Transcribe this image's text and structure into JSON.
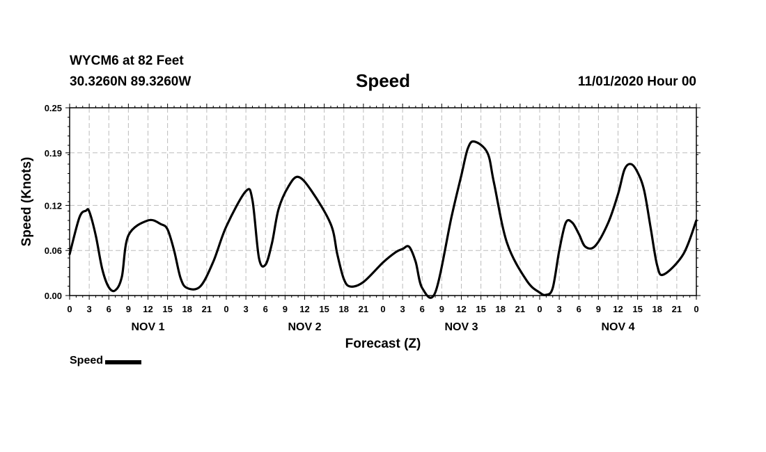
{
  "header": {
    "station": "WYCM6 at 82 Feet",
    "coords": "30.3260N 89.3260W",
    "title": "Speed",
    "datetime": "11/01/2020 Hour 00"
  },
  "legend": {
    "label": "Speed"
  },
  "colors": {
    "line": "#000000",
    "grid": "#bbbbbb"
  },
  "chart_data": {
    "type": "line",
    "title": "Speed",
    "xlabel": "Forecast (Z)",
    "ylabel": "Speed (Knots)",
    "xlim": [
      0,
      96
    ],
    "ylim": [
      0,
      0.25
    ],
    "y_ticks": [
      "0.00",
      "0.06",
      "0.12",
      "0.19",
      "0.25"
    ],
    "x_ticks": [
      "0",
      "3",
      "6",
      "9",
      "12",
      "15",
      "18",
      "21",
      "0",
      "3",
      "6",
      "9",
      "12",
      "15",
      "18",
      "21",
      "0",
      "3",
      "6",
      "9",
      "12",
      "15",
      "18",
      "21",
      "0",
      "3",
      "6",
      "9",
      "12",
      "15",
      "18",
      "21",
      "0"
    ],
    "day_labels": [
      "NOV 1",
      "NOV 2",
      "NOV 3",
      "NOV 4"
    ],
    "grid": true,
    "legend_position": "bottom-left",
    "series": [
      {
        "name": "Speed",
        "x": [
          0,
          1.5,
          2.5,
          3,
          4,
          5,
          6,
          7,
          8,
          9,
          12,
          14,
          15,
          16,
          17,
          18,
          20,
          22,
          24,
          27,
          28,
          29,
          30,
          31,
          32,
          33.5,
          35,
          37,
          40,
          41,
          42,
          43,
          45,
          48,
          50,
          51,
          52,
          53,
          54,
          56,
          58.5,
          60,
          61,
          62,
          64,
          65,
          67,
          70,
          72,
          73,
          74,
          75,
          76,
          77,
          78,
          79,
          80.5,
          82.5,
          84,
          85,
          86,
          87,
          88,
          89,
          90,
          91,
          94,
          96
        ],
        "y": [
          0.055,
          0.104,
          0.113,
          0.112,
          0.08,
          0.035,
          0.011,
          0.007,
          0.025,
          0.08,
          0.1,
          0.095,
          0.088,
          0.06,
          0.023,
          0.01,
          0.012,
          0.045,
          0.092,
          0.139,
          0.127,
          0.05,
          0.041,
          0.07,
          0.115,
          0.145,
          0.158,
          0.14,
          0.095,
          0.055,
          0.022,
          0.012,
          0.018,
          0.044,
          0.058,
          0.062,
          0.065,
          0.045,
          0.01,
          0.004,
          0.105,
          0.16,
          0.196,
          0.205,
          0.19,
          0.15,
          0.07,
          0.02,
          0.004,
          0.001,
          0.01,
          0.06,
          0.097,
          0.097,
          0.082,
          0.065,
          0.066,
          0.097,
          0.135,
          0.168,
          0.175,
          0.164,
          0.14,
          0.09,
          0.04,
          0.028,
          0.055,
          0.1
        ]
      }
    ]
  }
}
